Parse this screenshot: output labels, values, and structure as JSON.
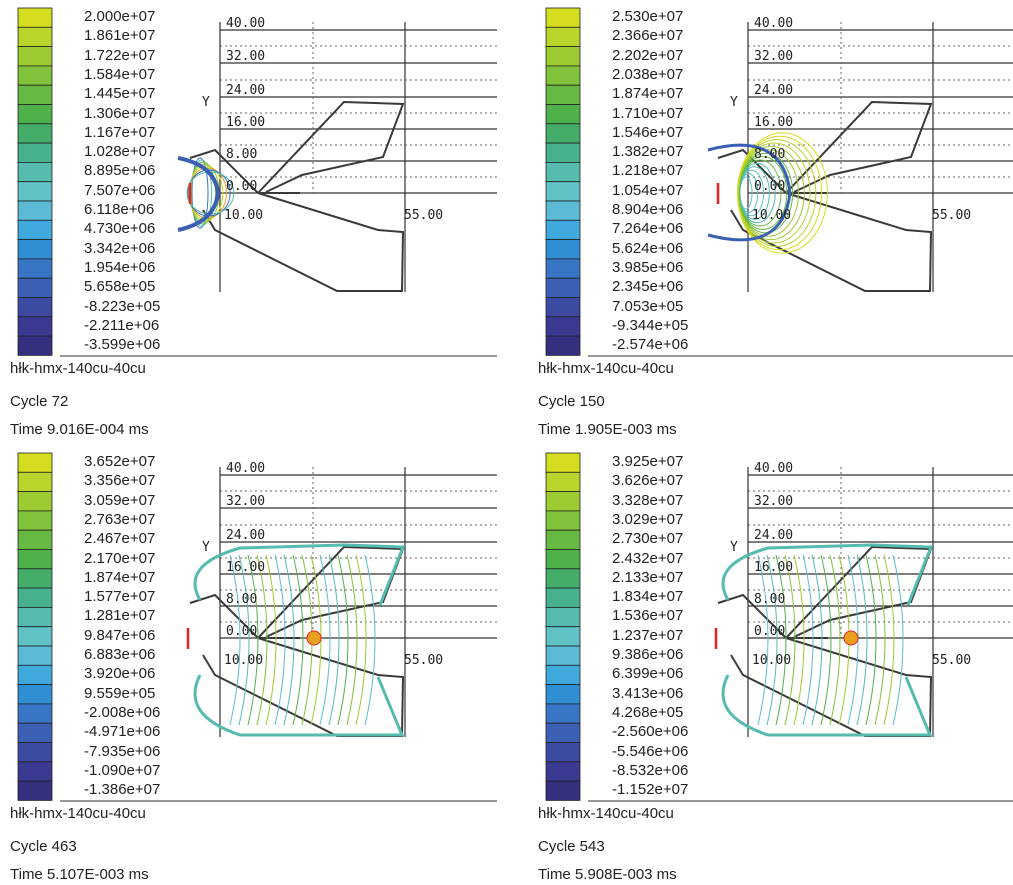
{
  "panels": [
    {
      "legend_labels": [
        "2.000e+07",
        "1.861e+07",
        "1.722e+07",
        "1.584e+07",
        "1.445e+07",
        "1.306e+07",
        "1.167e+07",
        "1.028e+07",
        "8.895e+06",
        "7.507e+06",
        "6.118e+06",
        "4.730e+06",
        "3.342e+06",
        "1.954e+06",
        "5.658e+05",
        "-8.223e+05",
        "-2.211e+06",
        "-3.599e+06"
      ],
      "title": "hłk-hmx-140cu-40cu",
      "cycle": "Cycle 72",
      "time": "Time 9.016E-004 ms"
    },
    {
      "legend_labels": [
        "2.530e+07",
        "2.366e+07",
        "2.202e+07",
        "2.038e+07",
        "1.874e+07",
        "1.710e+07",
        "1.546e+07",
        "1.382e+07",
        "1.218e+07",
        "1.054e+07",
        "8.904e+06",
        "7.264e+06",
        "5.624e+06",
        "3.985e+06",
        "2.345e+06",
        "7.053e+05",
        "-9.344e+05",
        "-2.574e+06"
      ],
      "title": "hłk-hmx-140cu-40cu",
      "cycle": "Cycle 150",
      "time": "Time 1.905E-003 ms"
    },
    {
      "legend_labels": [
        "3.652e+07",
        "3.356e+07",
        "3.059e+07",
        "2.763e+07",
        "2.467e+07",
        "2.170e+07",
        "1.874e+07",
        "1.577e+07",
        "1.281e+07",
        "9.847e+06",
        "6.883e+06",
        "3.920e+06",
        "9.559e+05",
        "-2.008e+06",
        "-4.971e+06",
        "-7.935e+06",
        "-1.090e+07",
        "-1.386e+07"
      ],
      "title": "hłk-hmx-140cu-40cu",
      "cycle": "Cycle 463",
      "time": "Time 5.107E-003 ms"
    },
    {
      "legend_labels": [
        "3.925e+07",
        "3.626e+07",
        "3.328e+07",
        "3.029e+07",
        "2.730e+07",
        "2.432e+07",
        "2.133e+07",
        "1.834e+07",
        "1.536e+07",
        "1.237e+07",
        "9.386e+06",
        "6.399e+06",
        "3.413e+06",
        "4.268e+05",
        "-2.560e+06",
        "-5.546e+06",
        "-8.532e+06",
        "-1.152e+07"
      ],
      "title": "hłk-hmx-140cu-40cu",
      "cycle": "Cycle 543",
      "time": "Time 5.908E-003 ms"
    }
  ],
  "axes": {
    "y_label": "Y",
    "y_ticks": [
      "40.00",
      "32.00",
      "24.00",
      "16.00",
      "8.00",
      "0.00"
    ],
    "x_ticks": [
      "10.00",
      "55.00"
    ]
  },
  "colors": {
    "liner": "#3a3a3a",
    "grid": "#333333",
    "marker": "#e8231d"
  }
}
